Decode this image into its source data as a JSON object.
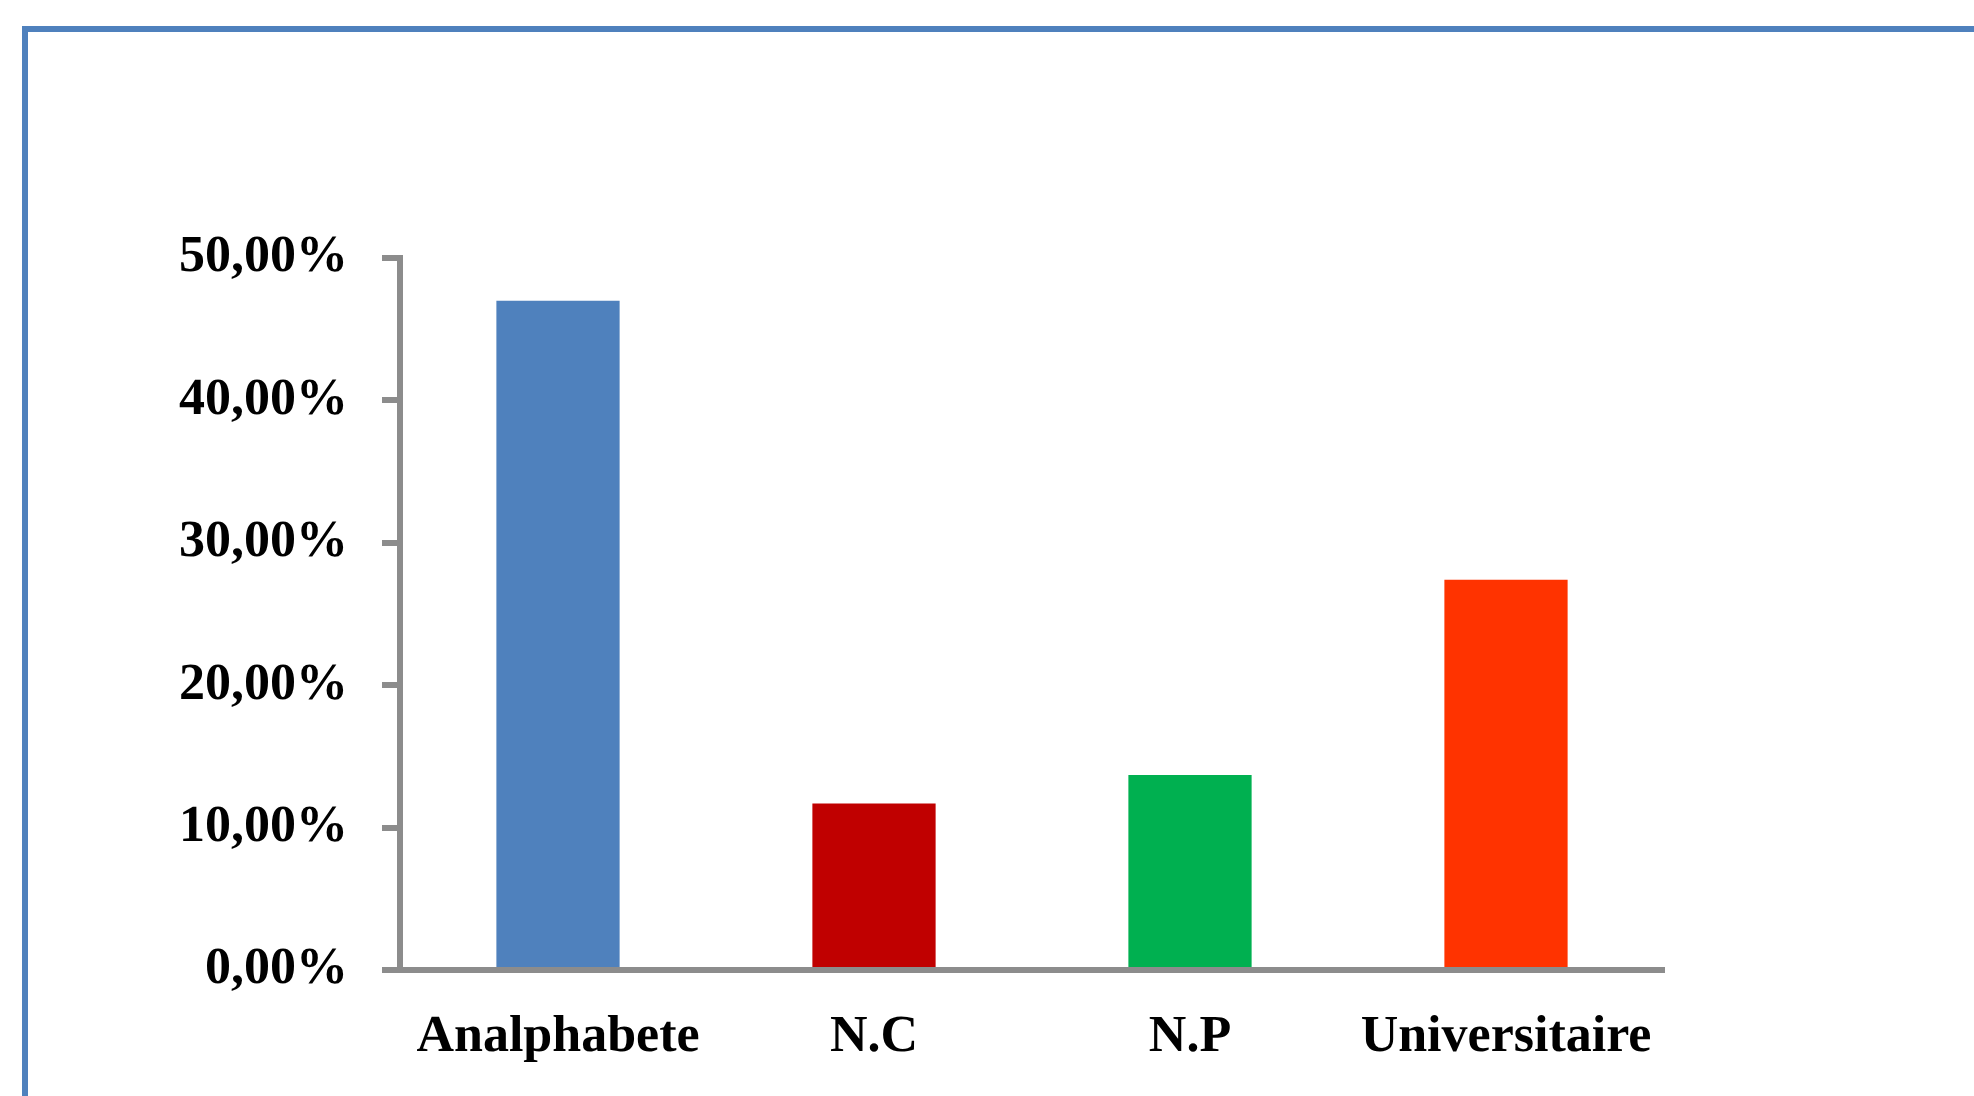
{
  "chart_data": {
    "type": "bar",
    "categories": [
      "Analphabete",
      "N.C",
      "N.P",
      "Universitaire"
    ],
    "values": [
      47,
      11.7,
      13.7,
      27.4
    ],
    "colors": [
      "#4f81bd",
      "#c00000",
      "#00b050",
      "#ff3300"
    ],
    "ylim": [
      0,
      50
    ],
    "yticks": [
      {
        "value": 0,
        "label": "0,00%"
      },
      {
        "value": 10,
        "label": "10,00%"
      },
      {
        "value": 20,
        "label": "20,00%"
      },
      {
        "value": 30,
        "label": "30,00%"
      },
      {
        "value": 40,
        "label": "40,00%"
      },
      {
        "value": 50,
        "label": "50,00%"
      }
    ]
  }
}
